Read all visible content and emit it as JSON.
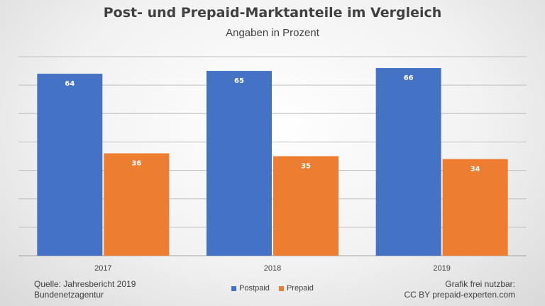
{
  "chart_data": {
    "type": "bar",
    "title": "Post- und Prepaid-Marktanteile im Vergleich",
    "subtitle": "Angaben in Prozent",
    "categories": [
      "2017",
      "2018",
      "2019"
    ],
    "series": [
      {
        "name": "Postpaid",
        "values": [
          64,
          65,
          66
        ],
        "color": "#4472c4"
      },
      {
        "name": "Prepaid",
        "values": [
          36,
          35,
          34
        ],
        "color": "#ed7d31"
      }
    ],
    "ylim": [
      0,
      70
    ],
    "grid": true,
    "legend": "bottom-center"
  },
  "footer": {
    "source_line1": "Quelle: Jahresbericht 2019",
    "source_line2": "Bundenetzagentur",
    "credit_line1": "Grafik frei nutzbar:",
    "credit_line2": "CC BY prepaid-experten.com"
  }
}
